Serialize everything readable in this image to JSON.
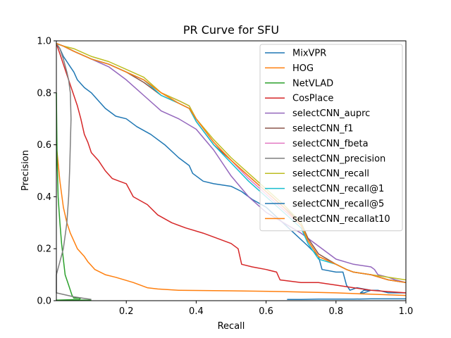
{
  "chart_data": {
    "type": "line",
    "title": "PR Curve for SFU",
    "xlabel": "Recall",
    "ylabel": "Precision",
    "xlim": [
      0,
      1
    ],
    "ylim": [
      0,
      1
    ],
    "xticks": [
      0.2,
      0.4,
      0.6,
      0.8,
      1.0
    ],
    "xtick_labels": [
      "0.2",
      "0.4",
      "0.6",
      "0.8",
      "1.0"
    ],
    "yticks": [
      0.0,
      0.2,
      0.4,
      0.6,
      0.8,
      1.0
    ],
    "ytick_labels": [
      "0.0",
      "0.2",
      "0.4",
      "0.6",
      "0.8",
      "1.0"
    ],
    "grid": false,
    "legend_position": "top-right",
    "series": [
      {
        "name": "MixVPR",
        "color": "#1f77b4",
        "x": [
          0.0,
          0.01,
          0.02,
          0.03,
          0.04,
          0.05,
          0.06,
          0.08,
          0.1,
          0.12,
          0.14,
          0.17,
          0.2,
          0.23,
          0.27,
          0.31,
          0.35,
          0.38,
          0.39,
          0.42,
          0.45,
          0.5,
          0.53,
          0.56,
          0.6,
          0.64,
          0.68,
          0.72,
          0.75,
          0.76,
          0.8,
          0.82,
          0.83,
          0.84,
          0.86,
          0.9,
          0.88,
          0.87,
          0.88,
          0.92,
          0.95,
          0.98,
          1.0
        ],
        "y": [
          0.99,
          0.97,
          0.94,
          0.92,
          0.9,
          0.88,
          0.85,
          0.82,
          0.8,
          0.77,
          0.74,
          0.71,
          0.7,
          0.67,
          0.64,
          0.6,
          0.55,
          0.52,
          0.49,
          0.46,
          0.45,
          0.44,
          0.42,
          0.39,
          0.36,
          0.31,
          0.26,
          0.21,
          0.17,
          0.12,
          0.11,
          0.11,
          0.06,
          0.04,
          0.05,
          0.04,
          0.03,
          0.03,
          0.04,
          0.04,
          0.03,
          0.03,
          0.03
        ]
      },
      {
        "name": "HOG",
        "color": "#ff7f0e",
        "x": [
          0.0,
          0.01,
          0.02,
          0.03,
          0.04,
          0.06,
          0.08,
          0.09,
          0.11,
          0.14,
          0.17,
          0.22,
          0.26,
          0.29,
          0.35,
          0.5,
          0.65,
          0.8,
          0.9,
          1.0
        ],
        "y": [
          0.6,
          0.46,
          0.36,
          0.3,
          0.26,
          0.2,
          0.17,
          0.15,
          0.12,
          0.1,
          0.09,
          0.07,
          0.05,
          0.045,
          0.04,
          0.038,
          0.035,
          0.03,
          0.025,
          0.02
        ]
      },
      {
        "name": "NetVLAD",
        "color": "#2ca02c",
        "x": [
          0.0,
          0.002,
          0.005,
          0.01,
          0.015,
          0.02,
          0.025,
          0.03,
          0.035,
          0.04,
          0.045,
          0.05,
          0.06,
          0.07,
          0.065,
          0.0,
          0.04,
          0.1
        ],
        "y": [
          0.8,
          0.55,
          0.4,
          0.3,
          0.22,
          0.16,
          0.1,
          0.08,
          0.06,
          0.04,
          0.02,
          0.01,
          0.01,
          0.01,
          0.005,
          0.002,
          0.003,
          0.002
        ]
      },
      {
        "name": "CosPlace",
        "color": "#d62728",
        "x": [
          0.0,
          0.01,
          0.02,
          0.03,
          0.04,
          0.05,
          0.06,
          0.07,
          0.08,
          0.09,
          0.1,
          0.12,
          0.14,
          0.16,
          0.18,
          0.2,
          0.22,
          0.26,
          0.29,
          0.33,
          0.37,
          0.42,
          0.46,
          0.5,
          0.52,
          0.53,
          0.56,
          0.6,
          0.63,
          0.64,
          0.7,
          0.75,
          0.8,
          0.85,
          0.9,
          0.95,
          1.0
        ],
        "y": [
          0.99,
          0.95,
          0.91,
          0.87,
          0.83,
          0.79,
          0.75,
          0.7,
          0.64,
          0.61,
          0.57,
          0.54,
          0.5,
          0.47,
          0.46,
          0.45,
          0.4,
          0.37,
          0.33,
          0.3,
          0.28,
          0.26,
          0.24,
          0.22,
          0.2,
          0.14,
          0.13,
          0.12,
          0.11,
          0.08,
          0.07,
          0.07,
          0.06,
          0.05,
          0.04,
          0.035,
          0.03
        ]
      },
      {
        "name": "selectCNN_auprc",
        "color": "#9467bd",
        "x": [
          0.0,
          0.02,
          0.05,
          0.1,
          0.15,
          0.2,
          0.25,
          0.3,
          0.35,
          0.4,
          0.45,
          0.5,
          0.55,
          0.6,
          0.65,
          0.7,
          0.75,
          0.8,
          0.85,
          0.9,
          0.91,
          0.92,
          0.95,
          0.97,
          1.0
        ],
        "y": [
          0.99,
          0.98,
          0.96,
          0.93,
          0.9,
          0.85,
          0.79,
          0.73,
          0.7,
          0.66,
          0.58,
          0.48,
          0.4,
          0.34,
          0.3,
          0.26,
          0.21,
          0.16,
          0.14,
          0.13,
          0.12,
          0.1,
          0.09,
          0.08,
          0.07
        ]
      },
      {
        "name": "selectCNN_f1",
        "color": "#8c564b",
        "x": [
          0.0,
          0.02,
          0.05,
          0.1,
          0.15,
          0.2,
          0.25,
          0.3,
          0.35,
          0.38,
          0.4,
          0.45,
          0.5,
          0.55,
          0.6,
          0.65,
          0.7,
          0.72,
          0.75,
          0.8,
          0.83,
          0.85,
          0.9,
          0.95,
          1.0
        ],
        "y": [
          0.99,
          0.98,
          0.96,
          0.93,
          0.91,
          0.88,
          0.84,
          0.79,
          0.76,
          0.74,
          0.69,
          0.6,
          0.54,
          0.48,
          0.42,
          0.36,
          0.3,
          0.24,
          0.18,
          0.14,
          0.12,
          0.11,
          0.1,
          0.08,
          0.07
        ]
      },
      {
        "name": "selectCNN_fbeta",
        "color": "#e377c2",
        "x": [
          0.0,
          0.02,
          0.05,
          0.1,
          0.15,
          0.2,
          0.25,
          0.3,
          0.35,
          0.38,
          0.4,
          0.45,
          0.5,
          0.55,
          0.6,
          0.65,
          0.7,
          0.72,
          0.75,
          0.8,
          0.83,
          0.85,
          0.9,
          0.95,
          1.0
        ],
        "y": [
          0.99,
          0.98,
          0.96,
          0.93,
          0.91,
          0.88,
          0.85,
          0.8,
          0.77,
          0.75,
          0.7,
          0.61,
          0.54,
          0.47,
          0.41,
          0.35,
          0.29,
          0.23,
          0.17,
          0.14,
          0.12,
          0.11,
          0.1,
          0.08,
          0.07
        ]
      },
      {
        "name": "selectCNN_precision",
        "color": "#7f7f7f",
        "x": [
          0.0,
          0.01,
          0.02,
          0.03,
          0.035,
          0.04,
          0.042,
          0.04,
          0.038,
          0.035,
          0.03,
          0.02,
          0.01,
          0.0,
          0.0,
          0.05,
          0.1
        ],
        "y": [
          0.99,
          0.97,
          0.93,
          0.88,
          0.85,
          0.8,
          0.7,
          0.6,
          0.5,
          0.4,
          0.3,
          0.2,
          0.15,
          0.1,
          0.03,
          0.015,
          0.005
        ]
      },
      {
        "name": "selectCNN_recall",
        "color": "#bcbd22",
        "x": [
          0.0,
          0.02,
          0.05,
          0.1,
          0.15,
          0.2,
          0.25,
          0.3,
          0.35,
          0.38,
          0.4,
          0.45,
          0.5,
          0.55,
          0.6,
          0.65,
          0.7,
          0.72,
          0.75,
          0.8,
          0.83,
          0.85,
          0.9,
          0.95,
          1.0
        ],
        "y": [
          0.99,
          0.98,
          0.97,
          0.94,
          0.92,
          0.89,
          0.86,
          0.8,
          0.77,
          0.75,
          0.7,
          0.62,
          0.55,
          0.49,
          0.43,
          0.37,
          0.3,
          0.23,
          0.17,
          0.14,
          0.12,
          0.11,
          0.1,
          0.09,
          0.08
        ]
      },
      {
        "name": "selectCNN_recall@1",
        "color": "#17becf",
        "x": [
          0.0,
          0.02,
          0.05,
          0.1,
          0.15,
          0.2,
          0.25,
          0.3,
          0.35,
          0.38,
          0.4,
          0.45,
          0.5,
          0.55,
          0.6,
          0.65,
          0.7,
          0.72,
          0.75,
          0.8,
          0.83,
          0.85,
          0.9,
          0.95,
          1.0
        ],
        "y": [
          0.99,
          0.98,
          0.96,
          0.93,
          0.91,
          0.88,
          0.85,
          0.79,
          0.76,
          0.74,
          0.69,
          0.6,
          0.53,
          0.46,
          0.4,
          0.34,
          0.28,
          0.22,
          0.16,
          0.14,
          0.12,
          0.11,
          0.1,
          0.08,
          0.07
        ]
      },
      {
        "name": "selectCNN_recall@5",
        "color": "#1f77b4",
        "x": [
          0.66,
          0.7,
          0.75,
          0.8,
          0.85,
          0.9,
          0.95,
          1.0
        ],
        "y": [
          0.005,
          0.005,
          0.006,
          0.006,
          0.006,
          0.007,
          0.007,
          0.007
        ]
      },
      {
        "name": "selectCNN_recallat10",
        "color": "#ff7f0e",
        "x": [
          0.0,
          0.02,
          0.05,
          0.1,
          0.15,
          0.2,
          0.25,
          0.3,
          0.35,
          0.38,
          0.4,
          0.45,
          0.5,
          0.55,
          0.6,
          0.65,
          0.7,
          0.72,
          0.75,
          0.8,
          0.83,
          0.85,
          0.9,
          0.95,
          1.0
        ],
        "y": [
          0.99,
          0.98,
          0.96,
          0.93,
          0.91,
          0.88,
          0.85,
          0.8,
          0.76,
          0.74,
          0.7,
          0.61,
          0.54,
          0.48,
          0.42,
          0.36,
          0.29,
          0.23,
          0.17,
          0.14,
          0.12,
          0.11,
          0.1,
          0.08,
          0.07
        ]
      }
    ]
  }
}
